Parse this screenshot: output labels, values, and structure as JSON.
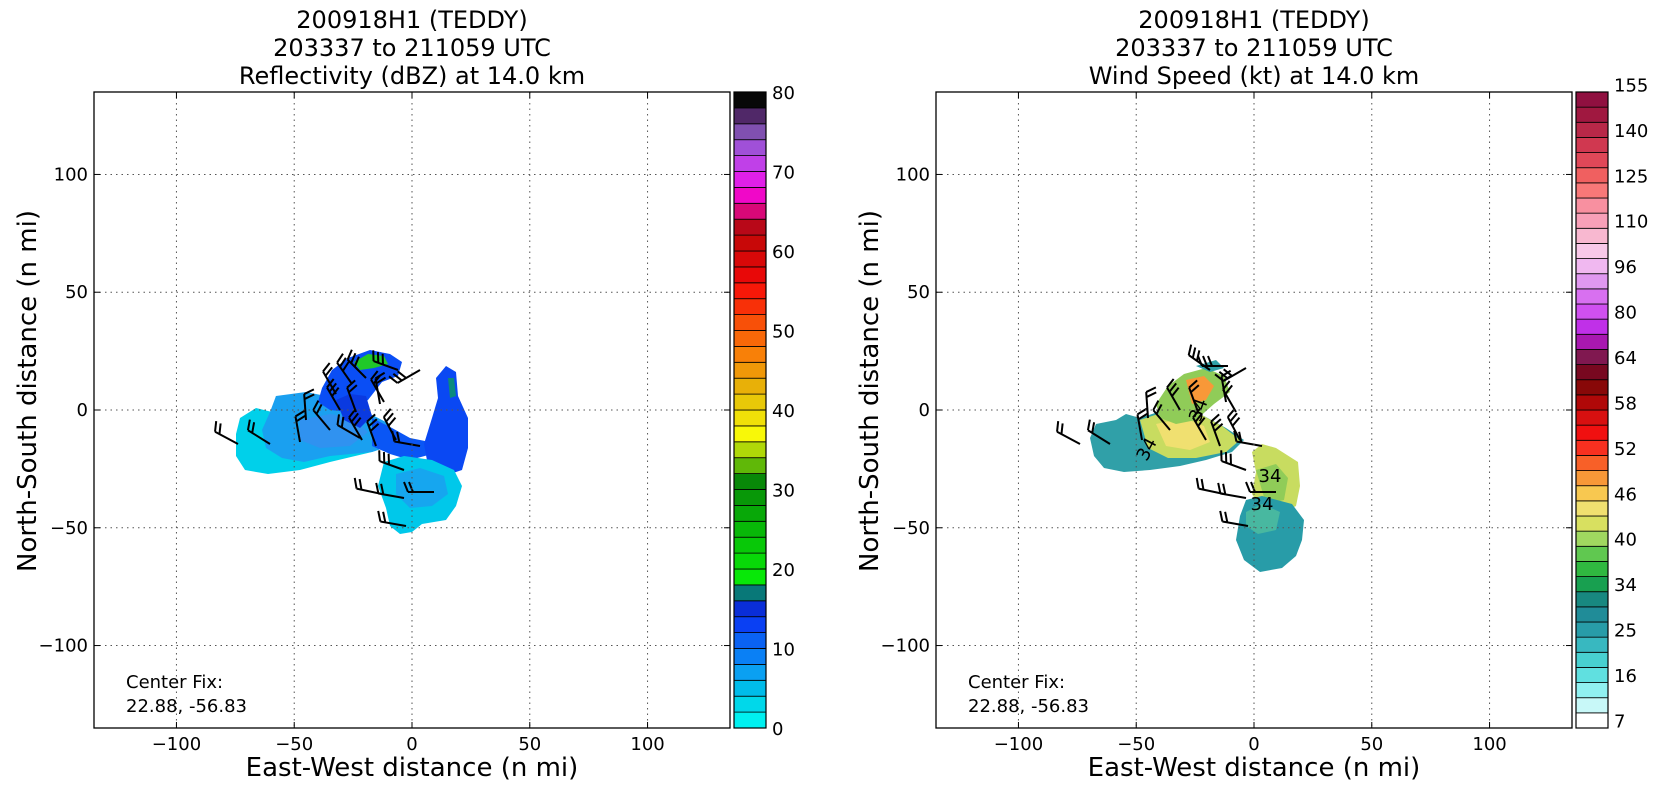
{
  "panels": [
    {
      "title_lines": [
        "200918H1 (TEDDY)",
        "203337 to 211059 UTC",
        "Reflectivity (dBZ) at 14.0 km"
      ],
      "xlabel": "East-West distance (n mi)",
      "ylabel": "North-South distance (n mi)",
      "center_fix_label": "Center Fix:",
      "center_fix_value": "22.88, -56.83"
    },
    {
      "title_lines": [
        "200918H1 (TEDDY)",
        "203337 to 211059 UTC",
        "Wind Speed (kt) at 14.0 km"
      ],
      "xlabel": "East-West distance (n mi)",
      "ylabel": "North-South distance (n mi)",
      "center_fix_label": "Center Fix:",
      "center_fix_value": "22.88, -56.83"
    }
  ],
  "chart_data": [
    {
      "type": "heatmap",
      "title": "200918H1 (TEDDY) 203337 to 211059 UTC Reflectivity (dBZ) at 14.0 km",
      "xlabel": "East-West distance (n mi)",
      "ylabel": "North-South distance (n mi)",
      "xlim": [
        -135,
        135
      ],
      "ylim": [
        -135,
        135
      ],
      "xticks": [
        -100,
        -50,
        0,
        50,
        100
      ],
      "yticks": [
        -100,
        -50,
        0,
        50,
        100
      ],
      "grid": true,
      "colorbar": {
        "label_values": [
          0,
          10,
          20,
          30,
          40,
          50,
          60,
          70,
          80
        ],
        "min": 0,
        "max": 80,
        "colors": [
          "#00f0f0",
          "#00d8ea",
          "#00bcea",
          "#0aa0f2",
          "#0a80f5",
          "#0a62f3",
          "#0a40f3",
          "#0a2ed8",
          "#087878",
          "#08e808",
          "#08d808",
          "#08c808",
          "#08b808",
          "#08a808",
          "#089808",
          "#088808",
          "#60b808",
          "#b0d808",
          "#f8f808",
          "#f0e008",
          "#e8c808",
          "#e8b008",
          "#f09808",
          "#f88008",
          "#f86808",
          "#f85008",
          "#f83008",
          "#f81808",
          "#e80808",
          "#d80808",
          "#c80808",
          "#b80818",
          "#d80878",
          "#f008c8",
          "#e020e8",
          "#c040e8",
          "#a050d8",
          "#8050b0",
          "#502868",
          "#080808"
        ]
      },
      "annotations": [
        "Center Fix:",
        "22.88, -56.83"
      ],
      "center_fix": [
        22.88,
        -56.83
      ]
    },
    {
      "type": "heatmap",
      "title": "200918H1 (TEDDY) 203337 to 211059 UTC Wind Speed (kt) at 14.0 km",
      "xlabel": "East-West distance (n mi)",
      "ylabel": "North-South distance (n mi)",
      "xlim": [
        -135,
        135
      ],
      "ylim": [
        -135,
        135
      ],
      "xticks": [
        -100,
        -50,
        0,
        50,
        100
      ],
      "yticks": [
        -100,
        -50,
        0,
        50,
        100
      ],
      "grid": true,
      "colorbar": {
        "label_values": [
          7,
          16,
          25,
          34,
          40,
          46,
          52,
          58,
          64,
          80,
          96,
          110,
          125,
          140,
          155
        ],
        "colors": [
          "#ffffff",
          "#c8f8f8",
          "#90f0f0",
          "#60e0e0",
          "#48d0d0",
          "#38b8c0",
          "#289ca8",
          "#208c98",
          "#188880",
          "#18a050",
          "#30b840",
          "#60c850",
          "#a0d860",
          "#d8e060",
          "#f0e070",
          "#f8c850",
          "#f89838",
          "#f86028",
          "#f83020",
          "#f01010",
          "#d81010",
          "#b00808",
          "#880808",
          "#780820",
          "#801850",
          "#a818b0",
          "#c030e8",
          "#d050f0",
          "#d870f0",
          "#e098f0",
          "#f0b8f0",
          "#f8c8e8",
          "#f8b8d0",
          "#f8a0b8",
          "#f890a0",
          "#f87878",
          "#f06060",
          "#e04858",
          "#d03850",
          "#b82848",
          "#a01840",
          "#901040"
        ]
      },
      "annotations": [
        "Center Fix:",
        "22.88, -56.83",
        "34",
        "34",
        "34",
        "34"
      ],
      "center_fix": [
        22.88,
        -56.83
      ]
    }
  ]
}
